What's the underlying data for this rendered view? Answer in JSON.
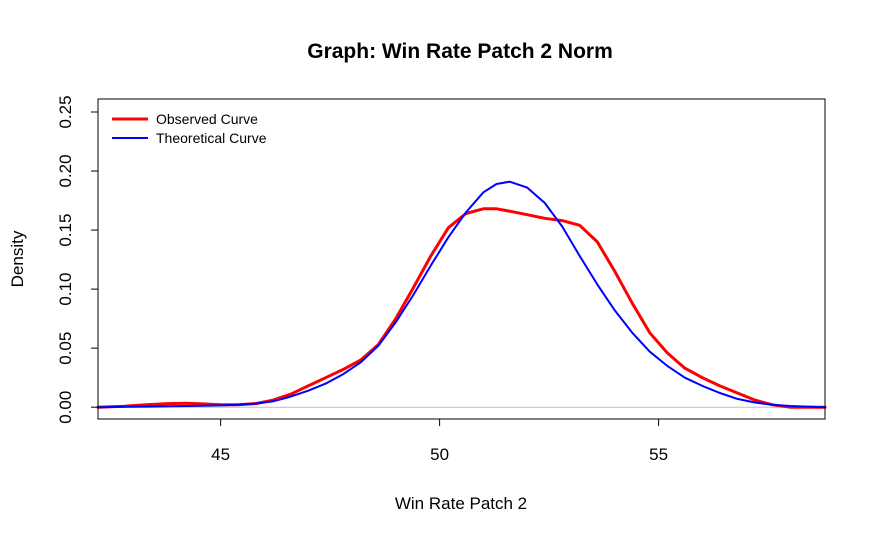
{
  "chart_data": {
    "type": "line",
    "title": "Graph: Win Rate Patch 2 Norm",
    "xlabel": "Win Rate Patch 2",
    "ylabel": "Density",
    "xlim": [
      42.2,
      58.8
    ],
    "ylim": [
      -0.01,
      0.261
    ],
    "x_ticks": [
      {
        "value": 45,
        "label": "45"
      },
      {
        "value": 50,
        "label": "50"
      },
      {
        "value": 55,
        "label": "55"
      }
    ],
    "y_ticks": [
      {
        "value": 0.0,
        "label": "0.00"
      },
      {
        "value": 0.05,
        "label": "0.05"
      },
      {
        "value": 0.1,
        "label": "0.10"
      },
      {
        "value": 0.15,
        "label": "0.15"
      },
      {
        "value": 0.2,
        "label": "0.20"
      },
      {
        "value": 0.25,
        "label": "0.25"
      }
    ],
    "grid": false,
    "reference_line": {
      "y": 0,
      "color": "#bebebe"
    },
    "legend": {
      "position": "top-left",
      "box": false
    },
    "series": [
      {
        "name": "Observed Curve",
        "color": "#ff0000",
        "x": [
          42.2,
          42.8,
          43.3,
          43.8,
          44.2,
          44.6,
          45.0,
          45.4,
          45.8,
          46.2,
          46.6,
          47.0,
          47.4,
          47.8,
          48.2,
          48.6,
          49.0,
          49.4,
          49.8,
          50.2,
          50.6,
          51.0,
          51.3,
          51.6,
          52.0,
          52.4,
          52.8,
          53.2,
          53.6,
          54.0,
          54.4,
          54.8,
          55.2,
          55.6,
          56.0,
          56.4,
          56.8,
          57.2,
          57.6,
          58.0,
          58.4,
          58.8
        ],
        "y": [
          0.0,
          0.0008,
          0.002,
          0.003,
          0.0033,
          0.0028,
          0.002,
          0.002,
          0.003,
          0.006,
          0.011,
          0.018,
          0.025,
          0.032,
          0.04,
          0.053,
          0.075,
          0.101,
          0.128,
          0.152,
          0.164,
          0.168,
          0.168,
          0.166,
          0.163,
          0.16,
          0.158,
          0.154,
          0.14,
          0.115,
          0.088,
          0.063,
          0.046,
          0.033,
          0.025,
          0.018,
          0.012,
          0.006,
          0.002,
          0.0,
          0.0,
          0.0
        ]
      },
      {
        "name": "Theoretical Curve",
        "color": "#0000ff",
        "x": [
          42.2,
          42.8,
          43.3,
          43.8,
          44.2,
          44.6,
          45.0,
          45.4,
          45.8,
          46.2,
          46.6,
          47.0,
          47.4,
          47.8,
          48.2,
          48.6,
          49.0,
          49.4,
          49.8,
          50.2,
          50.6,
          51.0,
          51.3,
          51.6,
          52.0,
          52.4,
          52.8,
          53.2,
          53.6,
          54.0,
          54.4,
          54.8,
          55.2,
          55.6,
          56.0,
          56.4,
          56.8,
          57.2,
          57.6,
          58.0,
          58.4,
          58.8
        ],
        "y": [
          0.0,
          0.0003,
          0.0005,
          0.0008,
          0.001,
          0.0012,
          0.0015,
          0.002,
          0.003,
          0.005,
          0.009,
          0.014,
          0.02,
          0.028,
          0.038,
          0.052,
          0.072,
          0.095,
          0.12,
          0.144,
          0.165,
          0.182,
          0.189,
          0.191,
          0.186,
          0.173,
          0.153,
          0.128,
          0.104,
          0.082,
          0.063,
          0.047,
          0.035,
          0.025,
          0.018,
          0.012,
          0.007,
          0.004,
          0.002,
          0.001,
          0.0005,
          0.0
        ]
      }
    ]
  }
}
